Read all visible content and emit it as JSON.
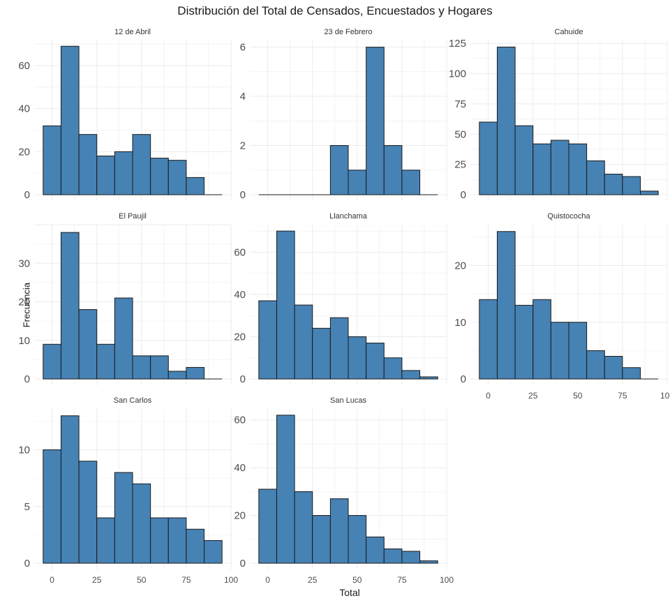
{
  "title": "Distribución del Total de Censados, Encuestados y Hogares",
  "xlabel": "Total",
  "ylabel": "Frecuencia",
  "colors": {
    "bar_fill": "#4682B4",
    "bar_stroke": "#1a1a1a",
    "grid": "#ebebeb"
  },
  "chart_data": {
    "type": "bar",
    "subtype": "faceted-histogram",
    "grid": true,
    "bin_edges": [
      -5,
      5,
      15,
      25,
      35,
      45,
      55,
      65,
      75,
      85,
      95
    ],
    "xlim": [
      -5,
      95
    ],
    "x_ticks": [
      "0",
      "25",
      "50",
      "75",
      "100"
    ],
    "facets": [
      {
        "name": "12 de Abril",
        "counts": [
          32,
          69,
          28,
          18,
          20,
          28,
          17,
          16,
          8,
          0
        ],
        "ylim": [
          0,
          72
        ],
        "y_ticks": [
          0,
          20,
          40,
          60
        ]
      },
      {
        "name": "23 de Febrero",
        "counts": [
          0,
          0,
          0,
          0,
          2,
          1,
          6,
          2,
          1,
          0
        ],
        "ylim": [
          0,
          6.3
        ],
        "y_ticks": [
          0,
          2,
          4,
          6
        ]
      },
      {
        "name": "Cahuide",
        "counts": [
          60,
          122,
          57,
          42,
          45,
          42,
          28,
          17,
          15,
          3
        ],
        "ylim": [
          0,
          128
        ],
        "y_ticks": [
          0,
          25,
          50,
          75,
          100,
          125
        ]
      },
      {
        "name": "El Paujil",
        "counts": [
          9,
          38,
          18,
          9,
          21,
          6,
          6,
          2,
          3,
          0
        ],
        "ylim": [
          0,
          40
        ],
        "y_ticks": [
          0,
          10,
          20,
          30
        ]
      },
      {
        "name": "Llanchama",
        "counts": [
          37,
          70,
          35,
          24,
          29,
          20,
          17,
          10,
          4,
          1
        ],
        "ylim": [
          0,
          73
        ],
        "y_ticks": [
          0,
          20,
          40,
          60
        ]
      },
      {
        "name": "Quistococha",
        "counts": [
          14,
          26,
          13,
          14,
          10,
          10,
          5,
          4,
          2,
          0
        ],
        "ylim": [
          0,
          27.2
        ],
        "y_ticks": [
          0,
          10,
          20
        ]
      },
      {
        "name": "San Carlos",
        "counts": [
          10,
          13,
          9,
          4,
          8,
          7,
          4,
          4,
          3,
          2
        ],
        "ylim": [
          0,
          13.6
        ],
        "y_ticks": [
          0,
          5,
          10
        ]
      },
      {
        "name": "San Lucas",
        "counts": [
          31,
          62,
          30,
          20,
          27,
          20,
          11,
          6,
          5,
          1
        ],
        "ylim": [
          0,
          64.6
        ],
        "y_ticks": [
          0,
          20,
          40,
          60
        ]
      }
    ]
  }
}
